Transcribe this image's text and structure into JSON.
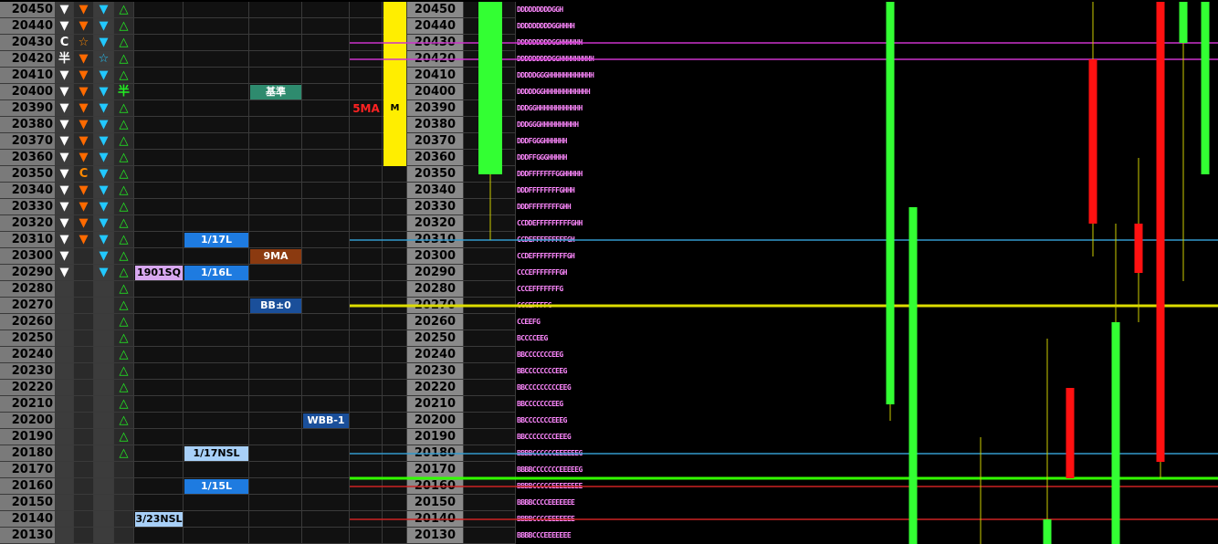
{
  "chart_data": {
    "type": "candlestick",
    "price_levels": [
      20450,
      20440,
      20430,
      20420,
      20410,
      20400,
      20390,
      20380,
      20370,
      20360,
      20350,
      20340,
      20330,
      20320,
      20310,
      20300,
      20290,
      20280,
      20270,
      20260,
      20250,
      20240,
      20230,
      20220,
      20210,
      20200,
      20190,
      20180,
      20170,
      20160,
      20150,
      20140,
      20130
    ],
    "indicator_columns": {
      "col1": {
        "20450": "▼",
        "20440": "▼",
        "20430": "C",
        "20420": "半",
        "20410": "▼",
        "20400": "▼",
        "20390": "▼",
        "20380": "▼",
        "20370": "▼",
        "20360": "▼",
        "20350": "▼",
        "20340": "▼",
        "20330": "▼",
        "20320": "▼",
        "20310": "▼",
        "20300": "▼",
        "20290": "▼"
      },
      "col2": {
        "20450": "▼",
        "20440": "▼",
        "20430": "☆",
        "20420": "▼",
        "20410": "▼",
        "20400": "▼",
        "20390": "▼",
        "20380": "▼",
        "20370": "▼",
        "20360": "▼",
        "20350": "C",
        "20340": "▼",
        "20330": "▼",
        "20320": "▼",
        "20310": "▼"
      },
      "col3": {
        "20450": "▼",
        "20440": "▼",
        "20430": "▼",
        "20420": "☆",
        "20410": "▼",
        "20400": "▼",
        "20390": "▼",
        "20380": "▼",
        "20370": "▼",
        "20360": "▼",
        "20350": "▼",
        "20340": "▼",
        "20330": "▼",
        "20320": "▼",
        "20310": "▼",
        "20300": "▼",
        "20290": "▼"
      },
      "col4": {
        "20450": "△",
        "20440": "△",
        "20430": "△",
        "20420": "△",
        "20410": "△",
        "20400": "半",
        "20390": "△",
        "20380": "△",
        "20370": "△",
        "20360": "△",
        "20350": "△",
        "20340": "△",
        "20330": "△",
        "20320": "△",
        "20310": "△",
        "20300": "△",
        "20290": "△",
        "20280": "△",
        "20270": "△",
        "20260": "△",
        "20250": "△",
        "20240": "△",
        "20230": "△",
        "20220": "△",
        "20210": "△",
        "20200": "△",
        "20190": "△",
        "20180": "△"
      }
    },
    "labels": [
      {
        "text": "基準",
        "price": 20400,
        "column": "c3",
        "bg": "#2e8b6e",
        "color": "#ffffff"
      },
      {
        "text": "1/17L",
        "price": 20310,
        "column": "c2",
        "bg": "#1e7be0",
        "color": "#ffffff"
      },
      {
        "text": "9MA",
        "price": 20300,
        "column": "c3",
        "bg": "#8b3a10",
        "color": "#ffffff"
      },
      {
        "text": "1901SQ",
        "price": 20290,
        "column": "c1",
        "bg": "#d8a8f0",
        "color": "#000000"
      },
      {
        "text": "1/16L",
        "price": 20290,
        "column": "c2",
        "bg": "#1e7be0",
        "color": "#ffffff"
      },
      {
        "text": "BB±0",
        "price": 20270,
        "column": "c3",
        "bg": "#1a4f9a",
        "color": "#ffffff"
      },
      {
        "text": "WBB-1",
        "price": 20200,
        "column": "c4",
        "bg": "#1a4f9a",
        "color": "#ffffff"
      },
      {
        "text": "1/17NSL",
        "price": 20180,
        "column": "c2",
        "bg": "#a8d0f8",
        "color": "#000000"
      },
      {
        "text": "1/15L",
        "price": 20160,
        "column": "c2",
        "bg": "#1e7be0",
        "color": "#ffffff"
      },
      {
        "text": "3/23NSL",
        "price": 20140,
        "column": "c1",
        "bg": "#a8d0f8",
        "color": "#000000"
      }
    ],
    "ma5_label": {
      "text": "5MA",
      "price": 20390
    },
    "ma_box": {
      "text": "M",
      "top": 20450,
      "bottom": 20360,
      "price": 20390,
      "color": "#ffee00"
    },
    "tpo_profile": {
      "20450": "DDDDDDDDDGGH",
      "20440": "DDDDDDDDDGGHHHH",
      "20430": "DDDDDDDDDGGHHHHHH",
      "20420": "DDDDDDDDDGGHHHHHHHHH",
      "20410": "DDDDDGGGHHHHHHHHHHHH",
      "20400": "DDDDDGGHHHHHHHHHHHH",
      "20390": "DDDGGHHHHHHHHHHHH",
      "20380": "DDDGGGHHHHHHHHHH",
      "20370": "DDDFGGGHHHHHH",
      "20360": "DDDFFGGGHHHHH",
      "20350": "DDDFFFFFFFGGHHHHH",
      "20340": "DDDFFFFFFFFGHHH",
      "20330": "DDDFFFFFFFFGHH",
      "20320": "CCDDEFFFFFFFFFGHH",
      "20310": "CCDEFFFFFFFFFGH",
      "20300": "CCDEFFFFFFFFFGH",
      "20290": "CCCEFFFFFFFGH",
      "20280": "CCCEFFFFFFFG",
      "20270": "CCCEFFFFG",
      "20260": "CCEEFG",
      "20250": "BCCCCEEG",
      "20240": "BBCCCCCCCEEG",
      "20230": "BBCCCCCCCCEEG",
      "20220": "BBCCCCCCCCCEEG",
      "20210": "BBCCCCCCCEEG",
      "20200": "BBCCCCCCCEEEG",
      "20190": "BBCCCCCCCCEEEG",
      "20180": "BBBBCCCCCCEEEEEEG",
      "20170": "BBBBCCCCCCCEEEEEG",
      "20160": "BBBBCCCCCEEEEEEEE",
      "20150": "BBBBCCCCEEEEEEE",
      "20140": "BBBBCCCCEEEEEEE",
      "20130": "BBBBCCCEEEEEEE"
    },
    "horizontal_lines": [
      {
        "price": 20430,
        "color": "#cc33cc"
      },
      {
        "price": 20420,
        "color": "#cc33cc"
      },
      {
        "price": 20310,
        "color": "#3399cc"
      },
      {
        "price": 20270,
        "color": "#dddd00"
      },
      {
        "price": 20180,
        "color": "#3399cc"
      },
      {
        "price": 20165,
        "color": "#33ff00"
      },
      {
        "price": 20160,
        "color": "#cc2222"
      },
      {
        "price": 20140,
        "color": "#cc2222"
      }
    ],
    "candles": [
      {
        "x": 537,
        "open": 20455,
        "close": 20350,
        "high": 20455,
        "low": 20310,
        "color": "#33ff33"
      },
      {
        "x": 975,
        "open": 20455,
        "close": 20210,
        "high": 20455,
        "low": 20200,
        "color": "#33ff33"
      },
      {
        "x": 1000,
        "open": 20330,
        "close": 20125,
        "high": 20330,
        "low": 20125,
        "color": "#33ff33"
      },
      {
        "x": 1074,
        "open": 20135,
        "close": 20135,
        "high": 20190,
        "low": 20125,
        "color": "#ffee00"
      },
      {
        "x": 1147,
        "open": 20140,
        "close": 20125,
        "high": 20250,
        "low": 20125,
        "color": "#33ff33"
      },
      {
        "x": 1172,
        "open": 20220,
        "close": 20165,
        "high": 20220,
        "low": 20165,
        "color": "#ff1111"
      },
      {
        "x": 1197,
        "open": 20420,
        "close": 20320,
        "high": 20455,
        "low": 20300,
        "color": "#ff1111"
      },
      {
        "x": 1222,
        "open": 20260,
        "close": 20125,
        "high": 20320,
        "low": 20125,
        "color": "#33ff33"
      },
      {
        "x": 1247,
        "open": 20320,
        "close": 20290,
        "high": 20360,
        "low": 20260,
        "color": "#ff1111"
      },
      {
        "x": 1271,
        "open": 20455,
        "close": 20175,
        "high": 20455,
        "low": 20165,
        "color": "#ff1111"
      },
      {
        "x": 1296,
        "open": 20455,
        "close": 20430,
        "high": 20455,
        "low": 20285,
        "color": "#33ff33"
      },
      {
        "x": 1320,
        "open": 20455,
        "close": 20350,
        "high": 20455,
        "low": 20350,
        "color": "#33ff33"
      }
    ]
  }
}
